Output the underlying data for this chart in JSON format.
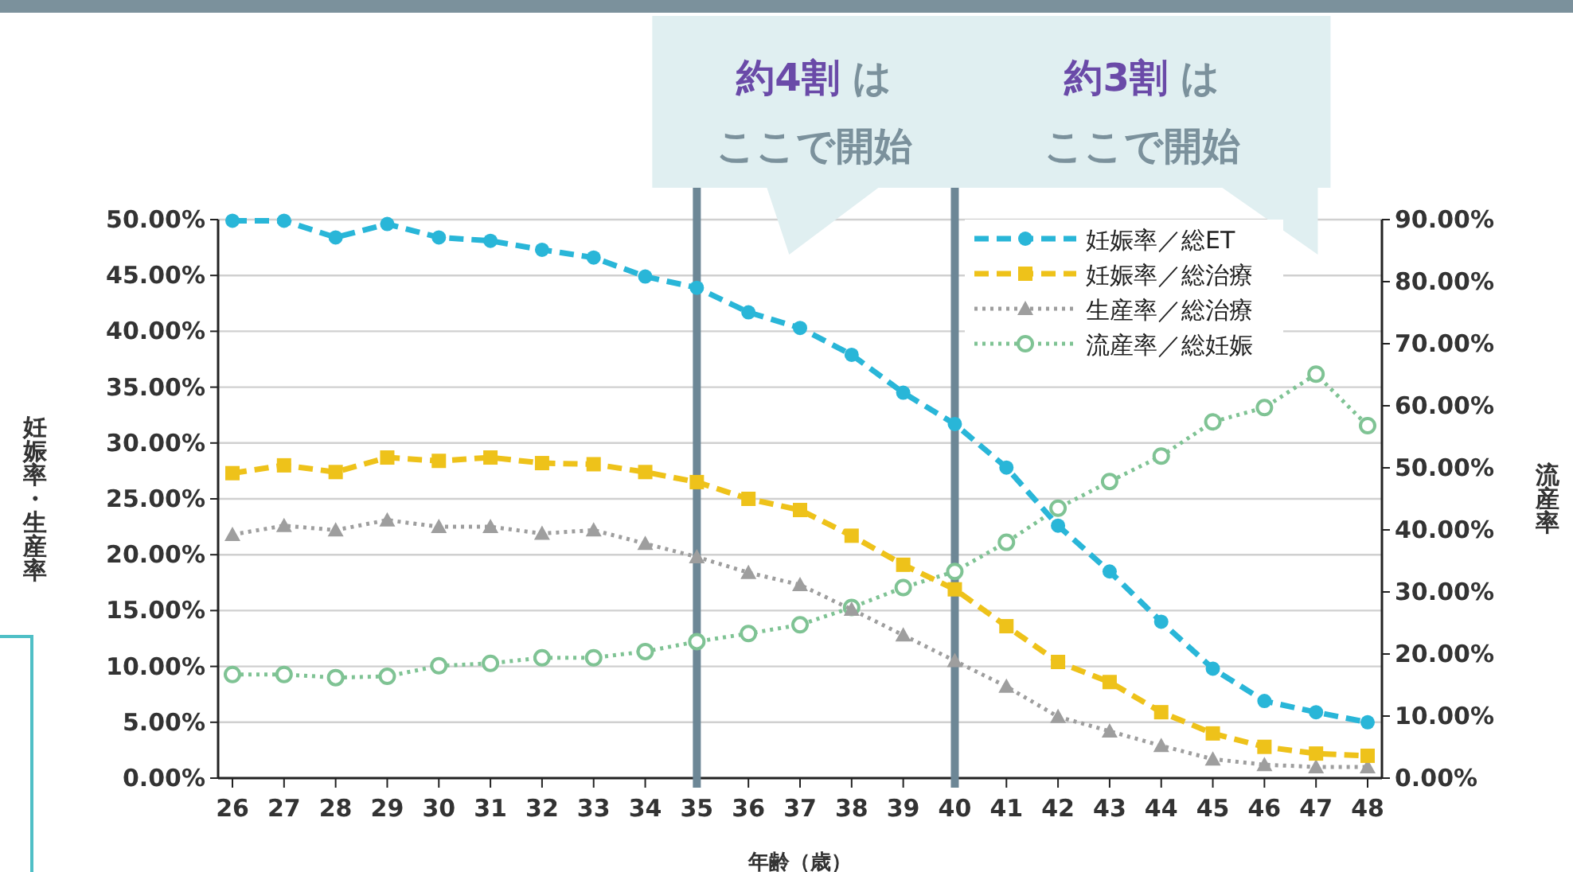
{
  "chart_data": {
    "type": "line",
    "xlabel": "年齢（歳）",
    "ylabel": "妊娠率・生産率",
    "y2label": "流産率",
    "categories": [
      "26",
      "27",
      "28",
      "29",
      "30",
      "31",
      "32",
      "33",
      "34",
      "35",
      "36",
      "37",
      "38",
      "39",
      "40",
      "41",
      "42",
      "43",
      "44",
      "45",
      "46",
      "47",
      "48"
    ],
    "series": [
      {
        "name": "妊娠率／総ET",
        "color": "#29b6d8",
        "marker": "circle",
        "line_style": "dashed",
        "values": [
          49.9,
          49.9,
          48.4,
          49.6,
          48.4,
          48.1,
          47.3,
          46.6,
          44.9,
          43.9,
          41.7,
          40.3,
          37.9,
          34.5,
          31.7,
          27.8,
          22.6,
          18.5,
          14.0,
          9.8,
          6.9,
          5.9,
          5.0
        ]
      },
      {
        "name": "妊娠率／総治療",
        "color": "#eec21a",
        "marker": "square",
        "line_style": "dashed",
        "values": [
          27.3,
          28.0,
          27.4,
          28.7,
          28.4,
          28.7,
          28.2,
          28.1,
          27.4,
          26.5,
          25.0,
          24.0,
          21.7,
          19.1,
          16.9,
          13.6,
          10.4,
          8.6,
          5.9,
          4.0,
          2.8,
          2.2,
          2.0
        ]
      },
      {
        "name": "生産率／総治療",
        "color": "#9e9e9e",
        "marker": "triangle",
        "line_style": "dotted",
        "values": [
          21.8,
          22.6,
          22.2,
          23.1,
          22.5,
          22.5,
          21.9,
          22.2,
          21.0,
          19.8,
          18.4,
          17.3,
          15.1,
          12.8,
          10.5,
          8.2,
          5.5,
          4.2,
          2.9,
          1.7,
          1.2,
          1.0,
          1.0
        ]
      },
      {
        "name": "流産率／総妊娠",
        "color": "#7fc394",
        "marker": "circle_open",
        "line_style": "dotted",
        "axis": "y2",
        "values": [
          16.7,
          16.7,
          16.2,
          16.4,
          18.1,
          18.5,
          19.4,
          19.4,
          20.4,
          22.0,
          23.3,
          24.7,
          27.5,
          30.7,
          33.3,
          38.0,
          43.5,
          47.8,
          51.9,
          57.4,
          59.7,
          65.1,
          56.8
        ]
      }
    ],
    "ylim": [
      0,
      50
    ],
    "yticks": [
      {
        "value": 0,
        "label": "0.00%"
      },
      {
        "value": 5,
        "label": "5.00%"
      },
      {
        "value": 10,
        "label": "10.00%"
      },
      {
        "value": 15,
        "label": "15.00%"
      },
      {
        "value": 20,
        "label": "20.00%"
      },
      {
        "value": 25,
        "label": "25.00%"
      },
      {
        "value": 30,
        "label": "30.00%"
      },
      {
        "value": 35,
        "label": "35.00%"
      },
      {
        "value": 40,
        "label": "40.00%"
      },
      {
        "value": 45,
        "label": "45.00%"
      },
      {
        "value": 50,
        "label": "50.00%"
      }
    ],
    "y2lim": [
      0,
      90
    ],
    "y2ticks": [
      {
        "value": 0,
        "label": "0.00%"
      },
      {
        "value": 10,
        "label": "10.00%"
      },
      {
        "value": 20,
        "label": "20.00%"
      },
      {
        "value": 30,
        "label": "30.00%"
      },
      {
        "value": 40,
        "label": "40.00%"
      },
      {
        "value": 50,
        "label": "50.00%"
      },
      {
        "value": 60,
        "label": "60.00%"
      },
      {
        "value": 70,
        "label": "70.00%"
      },
      {
        "value": 80,
        "label": "80.00%"
      },
      {
        "value": 90,
        "label": "90.00%"
      }
    ],
    "grid": "y",
    "legend": "top right",
    "ref_lines": [
      {
        "axis": "x",
        "value": "35",
        "label": "約4割 はここで開始",
        "color": "#6d8796"
      },
      {
        "axis": "x",
        "value": "40",
        "label": "約3割 はここで開始",
        "color": "#6d8796"
      }
    ]
  }
}
